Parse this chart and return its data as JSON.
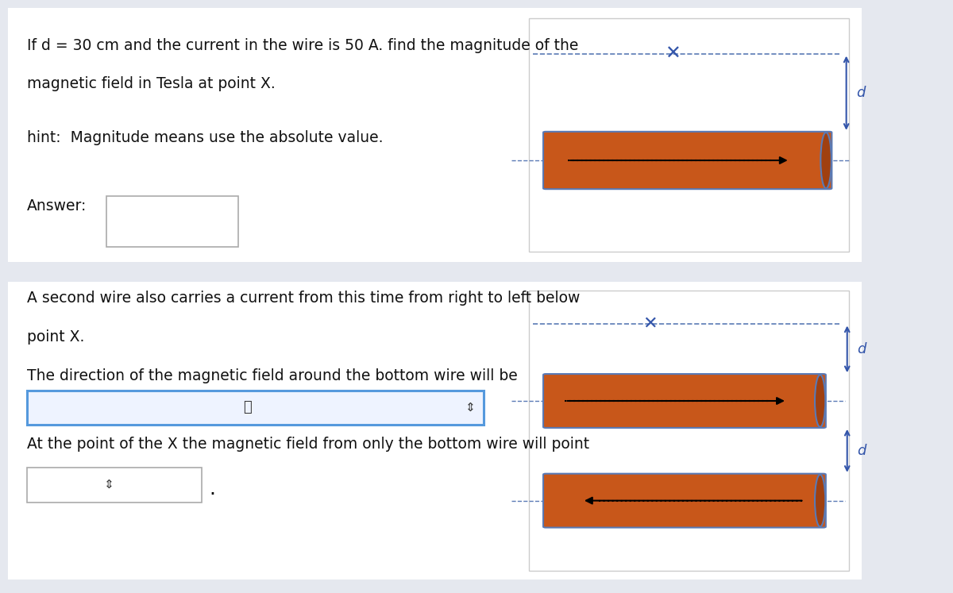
{
  "bg_color": "#e5e8ef",
  "panel_bg": "#ffffff",
  "wire_color": "#c8571a",
  "wire_cap_color": "#a04010",
  "wire_border": "#5a7ab5",
  "dashed_color": "#5a7ab5",
  "x_color": "#3355aa",
  "arrow_color": "#3355aa",
  "text_color": "#111111",
  "font_size": 13.5,
  "panel1": {
    "text1": "If d = 30 cm and the current in the wire is 50 A. find the magnitude of the",
    "text2": "magnetic field in Tesla at point X.",
    "hint": "hint:  Magnitude means use the absolute value.",
    "answer_label": "Answer:"
  },
  "panel2": {
    "text1": "A second wire also carries a current from this time from right to left below",
    "text2": "point X.",
    "text3": "The direction of the magnetic field around the bottom wire will be",
    "text4": "At the point of the X the magnetic field from only the bottom wire will point"
  }
}
